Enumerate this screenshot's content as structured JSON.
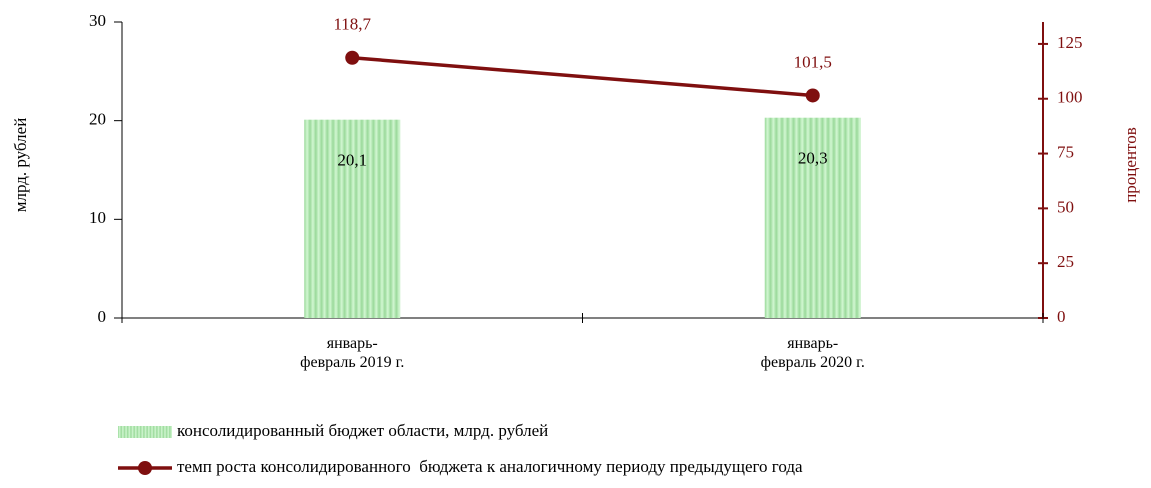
{
  "chart_data": {
    "type": "bar_line",
    "categories": [
      "январь-\nфевраль 2019 г.",
      "январь-\nфевраль 2020 г."
    ],
    "series": [
      {
        "name": "консолидированный бюджет области, млрд. рублей",
        "type": "bar",
        "color": "#b4ecb4",
        "values": [
          20.1,
          20.3
        ],
        "value_labels": [
          "20,1",
          "20,3"
        ]
      },
      {
        "name": "темп роста консолидированного  бюджета к аналогичному периоду предыдущего года",
        "type": "line",
        "axis": "y2",
        "color": "#7f0f0f",
        "values": [
          118.7,
          101.5
        ],
        "value_labels": [
          "118,7",
          "101,5"
        ]
      }
    ],
    "ylabel": "млрд. рублей",
    "y2label": "процентов",
    "ylim": [
      0,
      30
    ],
    "yticks": [
      0,
      10,
      20,
      30
    ],
    "y2lim": [
      0,
      135
    ],
    "y2ticks": [
      0,
      25,
      50,
      75,
      100,
      125
    ],
    "y2color": "#7f0f0f"
  }
}
